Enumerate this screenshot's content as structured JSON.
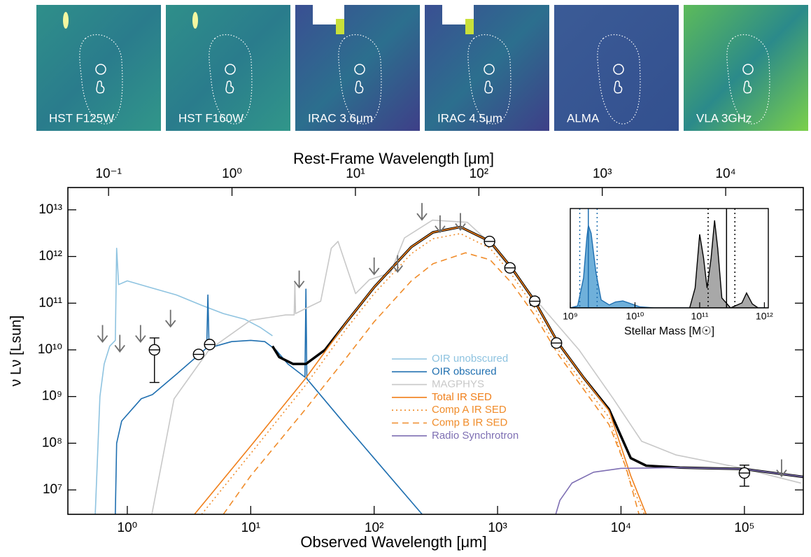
{
  "panels": [
    {
      "label": "HST F125W",
      "style": "hst"
    },
    {
      "label": "HST F160W",
      "style": "hst"
    },
    {
      "label": "IRAC 3.6μm",
      "style": "irac"
    },
    {
      "label": "IRAC 4.5μm",
      "style": "irac"
    },
    {
      "label": "ALMA",
      "style": "alma"
    },
    {
      "label": "VLA 3GHz",
      "style": "vla"
    }
  ],
  "chart_data": [
    {
      "type": "line",
      "xlabel": "Observed Wavelength [μm]",
      "x2label": "Rest-Frame Wavelength [μm]",
      "ylabel": "ν Lν [Lsun]",
      "xscale": "log",
      "yscale": "log",
      "xlim": [
        0.33,
        300000
      ],
      "ylim": [
        3000000,
        30000000000000
      ],
      "x2lim": [
        0.0468,
        42550
      ],
      "xticks": [
        {
          "value": 1,
          "label": "10⁰"
        },
        {
          "value": 10,
          "label": "10¹"
        },
        {
          "value": 100,
          "label": "10²"
        },
        {
          "value": 1000,
          "label": "10³"
        },
        {
          "value": 10000,
          "label": "10⁴"
        },
        {
          "value": 100000,
          "label": "10⁵"
        }
      ],
      "x2ticks": [
        {
          "value": 0.1,
          "label": "10⁻¹"
        },
        {
          "value": 1,
          "label": "10⁰"
        },
        {
          "value": 10,
          "label": "10¹"
        },
        {
          "value": 100,
          "label": "10²"
        },
        {
          "value": 1000,
          "label": "10³"
        },
        {
          "value": 10000,
          "label": "10⁴"
        }
      ],
      "yticks": [
        {
          "value": 10000000,
          "label": "10⁷"
        },
        {
          "value": 100000000,
          "label": "10⁸"
        },
        {
          "value": 1000000000,
          "label": "10⁹"
        },
        {
          "value": 10000000000,
          "label": "10¹⁰"
        },
        {
          "value": 100000000000,
          "label": "10¹¹"
        },
        {
          "value": 1000000000000,
          "label": "10¹²"
        },
        {
          "value": 10000000000000,
          "label": "10¹³"
        }
      ],
      "legend": "center",
      "series": [
        {
          "name": "OIR unobscured",
          "color": "#8ec3e0",
          "style": "solid",
          "x": [
            0.55,
            0.6,
            0.65,
            0.72,
            0.8,
            0.82,
            0.85,
            1,
            1.5,
            2.5,
            4,
            6,
            9,
            12,
            15
          ],
          "values": [
            3000000,
            1000000000,
            5000000000,
            12000000000,
            16000000000,
            1500000000000,
            250000000000,
            300000000000,
            220000000000,
            150000000000,
            90000000000,
            60000000000,
            45000000000,
            30000000000,
            20000000000
          ]
        },
        {
          "name": "OIR obscured",
          "color": "#1f6fb0",
          "style": "solid",
          "x": [
            0.8,
            0.82,
            0.9,
            1.3,
            1.6,
            2.5,
            4.4,
            4.5,
            4.6,
            7,
            10,
            13,
            16,
            20,
            27.5,
            28,
            28.5,
            60,
            120,
            245
          ],
          "values": [
            3000000,
            100000000,
            300000000,
            900000000,
            1100000000,
            3000000000,
            11000000000,
            150000000000,
            11000000000,
            15000000000,
            16000000000,
            15000000000,
            10000000000,
            5000000000,
            2600000000,
            200000000000,
            2400000000,
            230000000,
            27000000,
            3000000
          ]
        },
        {
          "name": "MAGPHYS",
          "color": "#c8c8c8",
          "style": "solid",
          "x": [
            1.58,
            2.39,
            4.6,
            10,
            19.2,
            22.5,
            22.8,
            23.1,
            28.4,
            36.9,
            44.9,
            51,
            62,
            70.8,
            91.8,
            136,
            176,
            297,
            569,
            839,
            2090,
            4570,
            8710,
            14700,
            28000,
            91500,
            287000
          ],
          "values": [
            3000000,
            890000000,
            10000000000,
            43000000000,
            56000000000,
            56000000000,
            270000000000,
            60000000000,
            79000000000,
            110000000000,
            1500000000000,
            2100000000000,
            450000000000,
            160000000000,
            320000000000,
            450000000000,
            2500000000000,
            6000000000000,
            5400000000000,
            2100000000000,
            110000000000,
            10000000000,
            880000000,
            110000000,
            56000000,
            30000000,
            14000000
          ]
        },
        {
          "color": "#000000",
          "style": "thick",
          "x": [
            15,
            17,
            22,
            28,
            40,
            60,
            100,
            200,
            300,
            500,
            870,
            1300,
            2000,
            3100,
            5000,
            8000,
            12000,
            16000,
            30000,
            100000,
            300000
          ],
          "values": [
            12000000000,
            7000000000,
            5000000000,
            5000000000,
            10000000000,
            40000000000,
            220000000000,
            1600000000000,
            3300000000000,
            4300000000000,
            2100000000000,
            570000000000,
            110000000000,
            14000000000,
            2500000000,
            530000000,
            48000000,
            33000000,
            30000000,
            28000000,
            19000000
          ]
        },
        {
          "name": "Total IR SED",
          "color": "#f07f1a",
          "style": "solid",
          "x": [
            3.5,
            10,
            28,
            60,
            100,
            200,
            300,
            500,
            870,
            1300,
            2000,
            3100,
            5000,
            8000,
            12000,
            16000
          ],
          "values": [
            3000000,
            87000000,
            2500000000,
            40000000000,
            220000000000,
            1600000000000,
            3300000000000,
            4300000000000,
            2100000000000,
            570000000000,
            110000000000,
            14000000000,
            2500000000,
            500000000,
            20000000,
            3000000
          ]
        },
        {
          "name": "Comp A IR SED",
          "color": "#f08c2a",
          "style": "dotted",
          "x": [
            4,
            10,
            28,
            60,
            100,
            200,
            300,
            500,
            870,
            1300,
            2000,
            3100,
            5000,
            8000,
            12000,
            15500
          ],
          "values": [
            3000000,
            60000000,
            1800000000,
            29000000000,
            160000000000,
            1150000000000,
            2400000000000,
            3100000000000,
            1500000000000,
            410000000000,
            79000000000,
            10000000000,
            1800000000,
            360000000,
            14000000,
            3000000
          ]
        },
        {
          "name": "Comp B IR SED",
          "color": "#f08c2a",
          "style": "dashed",
          "x": [
            6,
            10,
            28,
            60,
            100,
            200,
            300,
            550,
            870,
            1300,
            2000,
            3100,
            5000,
            8000,
            11000,
            14000
          ],
          "values": [
            3000000,
            20000000,
            550000000,
            7000000000,
            40000000000,
            300000000000,
            700000000000,
            1200000000000,
            850000000000,
            270000000000,
            55000000000,
            8000000000,
            1400000000,
            250000000,
            30000000,
            3000000
          ]
        },
        {
          "name": "Radio Synchrotron",
          "color": "#7e6fb3",
          "style": "solid",
          "x": [
            2960,
            3200,
            4000,
            6000,
            10000,
            30000,
            100000,
            300000
          ],
          "values": [
            3000000,
            6000000,
            14000000,
            24000000,
            29000000,
            30000000,
            28000000,
            19000000
          ]
        }
      ],
      "points": {
        "x": [
          1.66,
          3.78,
          4.65,
          861,
          1260,
          2000,
          3000,
          100000
        ],
        "values": [
          10000000000,
          8000000000,
          13000000000,
          2100000000000,
          570000000000,
          110000000000,
          14000000000,
          23000000
        ],
        "errors": [
          8000000000,
          1000000000,
          1500000000,
          200000000000,
          60000000000,
          20000000000,
          2000000000,
          11000000
        ]
      },
      "upper_limits": {
        "color": "#6e6e6e",
        "x": [
          0.63,
          0.87,
          1.28,
          2.24,
          24.7,
          100,
          155,
          244,
          342,
          500,
          200000
        ],
        "values": [
          34000000000,
          21000000000,
          34000000000,
          72000000000,
          500000000000,
          950000000000,
          1070000000000,
          14000000000000,
          7600000000000,
          8500000000000,
          45000000
        ]
      }
    },
    {
      "type": "density",
      "xlabel": "Stellar Mass [M☉]",
      "xscale": "log",
      "xlim": [
        1000000000,
        1150000000000
      ],
      "ylim": [
        0,
        1
      ],
      "xticks": [
        {
          "value": 1000000000,
          "label": "10⁹"
        },
        {
          "value": 10000000000,
          "label": "10¹⁰"
        },
        {
          "value": 100000000000,
          "label": "10¹¹"
        },
        {
          "value": 1000000000000,
          "label": "10¹²"
        }
      ],
      "series": [
        {
          "color": "#1f6fb0",
          "fill": "#6fb0da",
          "x": [
            1000000000,
            1300000000,
            1600000000,
            1800000000,
            1900000000,
            2100000000,
            2500000000,
            3000000000,
            4000000000,
            5000000000,
            6500000000,
            8000000000,
            12000000000,
            20000000000,
            1000000000000
          ],
          "values": [
            0,
            0.02,
            0.3,
            0.7,
            0.83,
            0.75,
            0.35,
            0.08,
            0.03,
            0.06,
            0.07,
            0.05,
            0.01,
            0,
            0
          ]
        },
        {
          "color": "#000000",
          "fill": "#a8a8a8",
          "x": [
            1000000000,
            70000000000,
            85000000000,
            100000000000,
            115000000000,
            130000000000,
            150000000000,
            170000000000,
            190000000000,
            220000000000,
            300000000000,
            450000000000,
            530000000000,
            650000000000,
            800000000000,
            1150000000000
          ],
          "values": [
            0,
            0,
            0.2,
            0.74,
            0.5,
            0.2,
            0.5,
            0.88,
            0.6,
            0.1,
            0,
            0.05,
            0.15,
            0.04,
            0,
            0
          ]
        }
      ],
      "lines": [
        {
          "value": 1900000000,
          "color": "#1f6fb0",
          "style": "solid"
        },
        {
          "value": 1400000000,
          "color": "#1f6fb0",
          "style": "dotted"
        },
        {
          "value": 2600000000,
          "color": "#1f6fb0",
          "style": "dotted"
        },
        {
          "value": 260000000000,
          "color": "#000000",
          "style": "solid"
        },
        {
          "value": 135000000000,
          "color": "#000000",
          "style": "dotted"
        },
        {
          "value": 350000000000,
          "color": "#000000",
          "style": "dotted"
        }
      ]
    }
  ]
}
